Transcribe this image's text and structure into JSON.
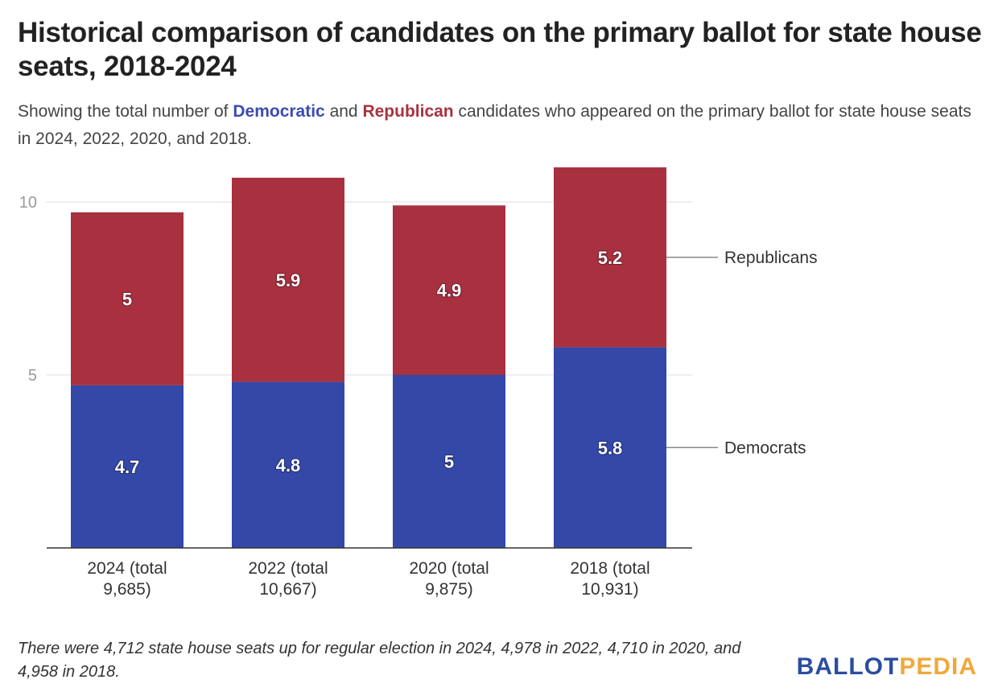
{
  "title": "Historical comparison of candidates on the primary ballot for state house seats, 2018-2024",
  "subtitle": {
    "pre": "Showing the total number of ",
    "dem_word": "Democratic",
    "mid": " and ",
    "rep_word": "Republican",
    "post": " candidates who appeared on the primary ballot for state house seats in 2024, 2022, 2020, and 2018."
  },
  "footnote": "There were 4,712 state house seats up for regular election in 2024, 4,978 in 2022, 4,710 in 2020, and 4,958 in 2018.",
  "logo": {
    "part1": "BALLOT",
    "part2": "PEDIA"
  },
  "chart_data": {
    "type": "bar",
    "stacked": true,
    "categories": [
      [
        "2024 (total",
        "9,685)"
      ],
      [
        "2022 (total",
        "10,667)"
      ],
      [
        "2020 (total",
        "9,875)"
      ],
      [
        "2018 (total",
        "10,931)"
      ]
    ],
    "series": [
      {
        "name": "Democrats",
        "values": [
          4.7,
          4.8,
          5.0,
          5.8
        ],
        "labels": [
          "4.7",
          "4.8",
          "5",
          "5.8"
        ],
        "color": "#3448a8"
      },
      {
        "name": "Republicans",
        "values": [
          5.0,
          5.9,
          4.9,
          5.2
        ],
        "labels": [
          "5",
          "5.9",
          "4.9",
          "5.2"
        ],
        "color": "#a8303f"
      }
    ],
    "yticks": [
      5,
      10
    ],
    "ylim": [
      0,
      11
    ],
    "grid": true,
    "legend": "right, inline labels"
  }
}
